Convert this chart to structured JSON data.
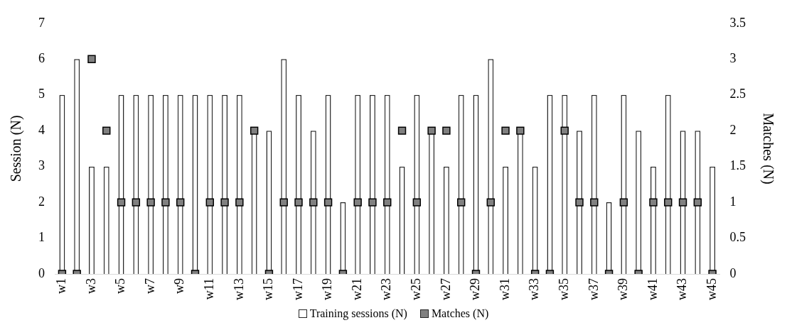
{
  "chart_data": {
    "type": "bar",
    "categories": [
      "w1",
      null,
      "w3",
      null,
      "w5",
      null,
      "w7",
      null,
      "w9",
      null,
      "w11",
      null,
      "w13",
      null,
      "w15",
      null,
      "w17",
      null,
      "w19",
      null,
      "w21",
      null,
      "w23",
      null,
      "w25",
      null,
      "w27",
      null,
      "w29",
      null,
      "w31",
      null,
      "w33",
      null,
      "w35",
      null,
      "w37",
      null,
      "w39",
      null,
      "w41",
      null,
      "w43",
      null,
      "w45"
    ],
    "series": [
      {
        "name": "Training sessions (N)",
        "color": "#ffffff",
        "values": [
          5,
          6,
          3,
          3,
          5,
          5,
          5,
          5,
          5,
          5,
          5,
          5,
          5,
          4,
          4,
          6,
          5,
          4,
          5,
          2,
          5,
          5,
          5,
          3,
          5,
          4,
          3,
          5,
          5,
          6,
          3,
          4,
          3,
          5,
          5,
          4,
          5,
          2,
          5,
          4,
          3,
          5,
          4,
          4,
          3
        ]
      },
      {
        "name": "Matches (N)",
        "type": "scatter",
        "axis": "y2",
        "color": "#808080",
        "values": [
          0,
          0,
          3,
          2,
          1,
          1,
          1,
          1,
          1,
          0,
          1,
          1,
          1,
          2,
          0,
          1,
          1,
          1,
          1,
          0,
          1,
          1,
          1,
          2,
          1,
          2,
          2,
          1,
          0,
          1,
          2,
          2,
          0,
          0,
          2,
          1,
          1,
          0,
          1,
          0,
          1,
          1,
          1,
          1,
          0
        ]
      }
    ],
    "ylabel": "Session (N)",
    "y2label": "Matches (N)",
    "ylim": [
      0,
      7
    ],
    "yticks": [
      0,
      1,
      2,
      3,
      4,
      5,
      6,
      7
    ],
    "y2lim": [
      0,
      3.5
    ],
    "y2ticks": [
      0,
      0.5,
      1,
      1.5,
      2,
      2.5,
      3,
      3.5
    ],
    "marker": "square",
    "grid": false,
    "legend": "bottom"
  }
}
